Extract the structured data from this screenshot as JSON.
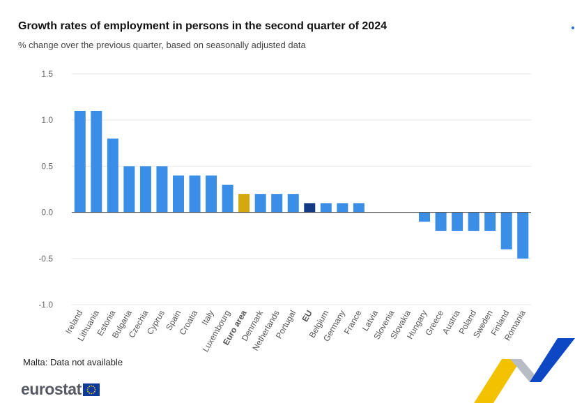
{
  "header": {
    "title": "Growth rates of employment in persons in the second quarter of 2024",
    "subtitle": "% change over the previous quarter, based on seasonally adjusted data"
  },
  "footer": {
    "note": "Malta: Data not available",
    "logo_text": "eurostat"
  },
  "colors": {
    "bar": "#3a8ee6",
    "euro_area": "#d4a80f",
    "eu": "#143a86",
    "grid": "#e6e6e6",
    "tick_text": "#666666",
    "swoosh_yellow": "#f2c200",
    "swoosh_blue": "#0e47c4",
    "swoosh_grey": "#b8bcc4"
  },
  "chart_data": {
    "type": "bar",
    "title": "Growth rates of employment in persons in the second quarter of 2024",
    "subtitle": "% change over the previous quarter, based on seasonally adjusted data",
    "xlabel": "",
    "ylabel": "",
    "ylim": [
      -1.0,
      1.5
    ],
    "yticks": [
      1.5,
      1.0,
      0.5,
      0.0,
      -0.5,
      -1.0
    ],
    "ytick_labels": [
      "1.5",
      "1.0",
      "0.5",
      "0.0",
      "-0.5",
      "-1.0"
    ],
    "grid": true,
    "legend": "none",
    "categories": [
      "Ireland",
      "Lithuania",
      "Estonia",
      "Bulgaria",
      "Czechia",
      "Cyprus",
      "Spain",
      "Croatia",
      "Italy",
      "Luxembourg",
      "Euro area",
      "Denmark",
      "Netherlands",
      "Portugal",
      "EU",
      "Belgium",
      "Germany",
      "France",
      "Latvia",
      "Slovenia",
      "Slovakia",
      "Hungary",
      "Greece",
      "Austria",
      "Poland",
      "Sweden",
      "Finland",
      "Romania"
    ],
    "values": [
      1.1,
      1.1,
      0.8,
      0.5,
      0.5,
      0.5,
      0.4,
      0.4,
      0.4,
      0.3,
      0.2,
      0.2,
      0.2,
      0.2,
      0.1,
      0.1,
      0.1,
      0.1,
      0.0,
      0.0,
      0.0,
      -0.1,
      -0.2,
      -0.2,
      -0.2,
      -0.2,
      -0.4,
      -0.5
    ],
    "highlight": {
      "Euro area": "euro_area",
      "EU": "eu"
    },
    "bold_labels": [
      "Euro area",
      "EU"
    ]
  }
}
